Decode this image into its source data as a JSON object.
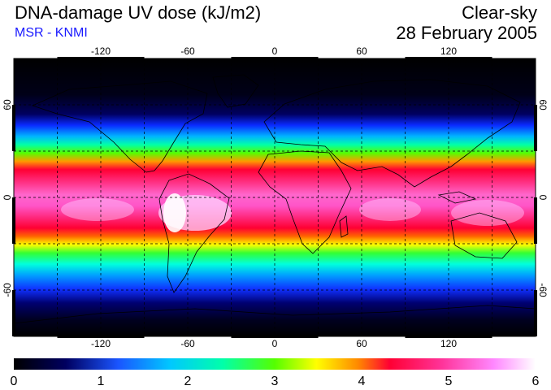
{
  "header": {
    "title": "DNA-damage UV dose (kJ/m2)",
    "subtitle": "MSR - KNMI",
    "sky_condition": "Clear-sky",
    "date": "28 February 2005"
  },
  "map": {
    "projection": "equirectangular",
    "gridlines": "dashed",
    "lon_ticks": [
      "-120",
      "-60",
      "0",
      "60",
      "120"
    ],
    "lat_ticks": [
      "60",
      "0",
      "-60"
    ],
    "lat_ticks_right": [
      "60",
      "0",
      "-60"
    ]
  },
  "colorbar": {
    "labels": [
      "0",
      "1",
      "2",
      "3",
      "4",
      "5",
      "6"
    ],
    "colors": [
      "#000000",
      "#00004a",
      "#1a55ff",
      "#00e5ff",
      "#00ff66",
      "#ffff00",
      "#ff8800",
      "#ff0033",
      "#ff33aa",
      "#ff88ff",
      "#ffffff"
    ]
  }
}
